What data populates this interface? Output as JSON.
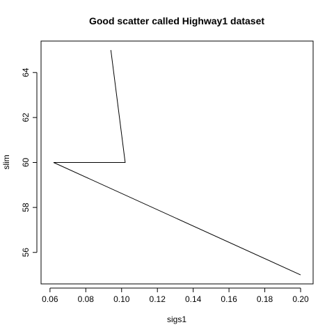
{
  "chart_data": {
    "type": "line",
    "title": "Good scatter called Highway1 dataset",
    "xlabel": "sigs1",
    "ylabel": "slim",
    "x": [
      0.094,
      0.102,
      0.062,
      0.2
    ],
    "y": [
      65,
      60,
      60,
      55
    ],
    "xlim": [
      0.055,
      0.207
    ],
    "ylim": [
      54.6,
      65.4
    ],
    "xticks": [
      0.06,
      0.08,
      0.1,
      0.12,
      0.14,
      0.16,
      0.18,
      0.2
    ],
    "xtick_labels": [
      "0.06",
      "0.08",
      "0.10",
      "0.12",
      "0.14",
      "0.16",
      "0.18",
      "0.20"
    ],
    "yticks": [
      56,
      58,
      60,
      62,
      64
    ],
    "ytick_labels": [
      "56",
      "58",
      "60",
      "62",
      "64"
    ],
    "grid": false,
    "line_color": "#000000"
  }
}
